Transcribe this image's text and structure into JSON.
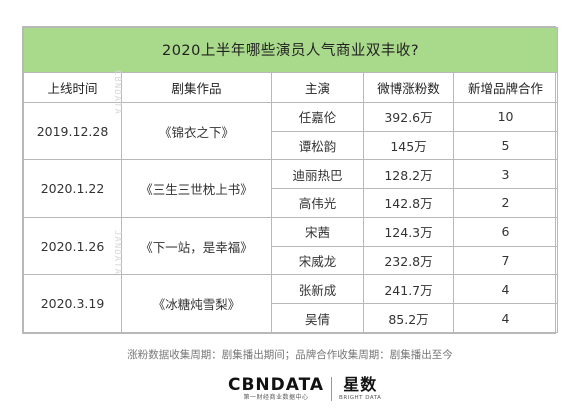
{
  "table": {
    "title": "2020上半年哪些演员人气商业双丰收?",
    "headers": {
      "date": "上线时间",
      "show": "剧集作品",
      "star": "主演",
      "fans": "微博涨粉数",
      "brands": "新增品牌合作"
    },
    "groups": [
      {
        "date": "2019.12.28",
        "show": "《锦衣之下》",
        "rows": [
          {
            "star": "任嘉伦",
            "fans": "392.6万",
            "brands": "10"
          },
          {
            "star": "谭松韵",
            "fans": "145万",
            "brands": "5"
          }
        ]
      },
      {
        "date": "2020.1.22",
        "show": "《三生三世枕上书》",
        "rows": [
          {
            "star": "迪丽热巴",
            "fans": "128.2万",
            "brands": "3"
          },
          {
            "star": "高伟光",
            "fans": "142.8万",
            "brands": "2"
          }
        ]
      },
      {
        "date": "2020.1.26",
        "show": "《下一站，是幸福》",
        "rows": [
          {
            "star": "宋茜",
            "fans": "124.3万",
            "brands": "6"
          },
          {
            "star": "宋威龙",
            "fans": "232.8万",
            "brands": "7"
          }
        ]
      },
      {
        "date": "2020.3.19",
        "show": "《冰糖炖雪梨》",
        "rows": [
          {
            "star": "张新成",
            "fans": "241.7万",
            "brands": "4"
          },
          {
            "star": "吴倩",
            "fans": "85.2万",
            "brands": "4"
          }
        ]
      }
    ]
  },
  "watermark": {
    "text_top": "CBNDATA",
    "text_bottom": "JANDATA"
  },
  "footnote": "涨粉数据收集周期：剧集播出期间；品牌合作收集周期：剧集播出至今",
  "logo": {
    "cbn_main": "CBNDATA",
    "cbn_sub": "第一财经商业数据中心",
    "star_main": "星数",
    "star_sub": "BRIGHT DATA"
  },
  "colors": {
    "title_bg": "#a9d98a",
    "border": "#b8b8b8"
  }
}
